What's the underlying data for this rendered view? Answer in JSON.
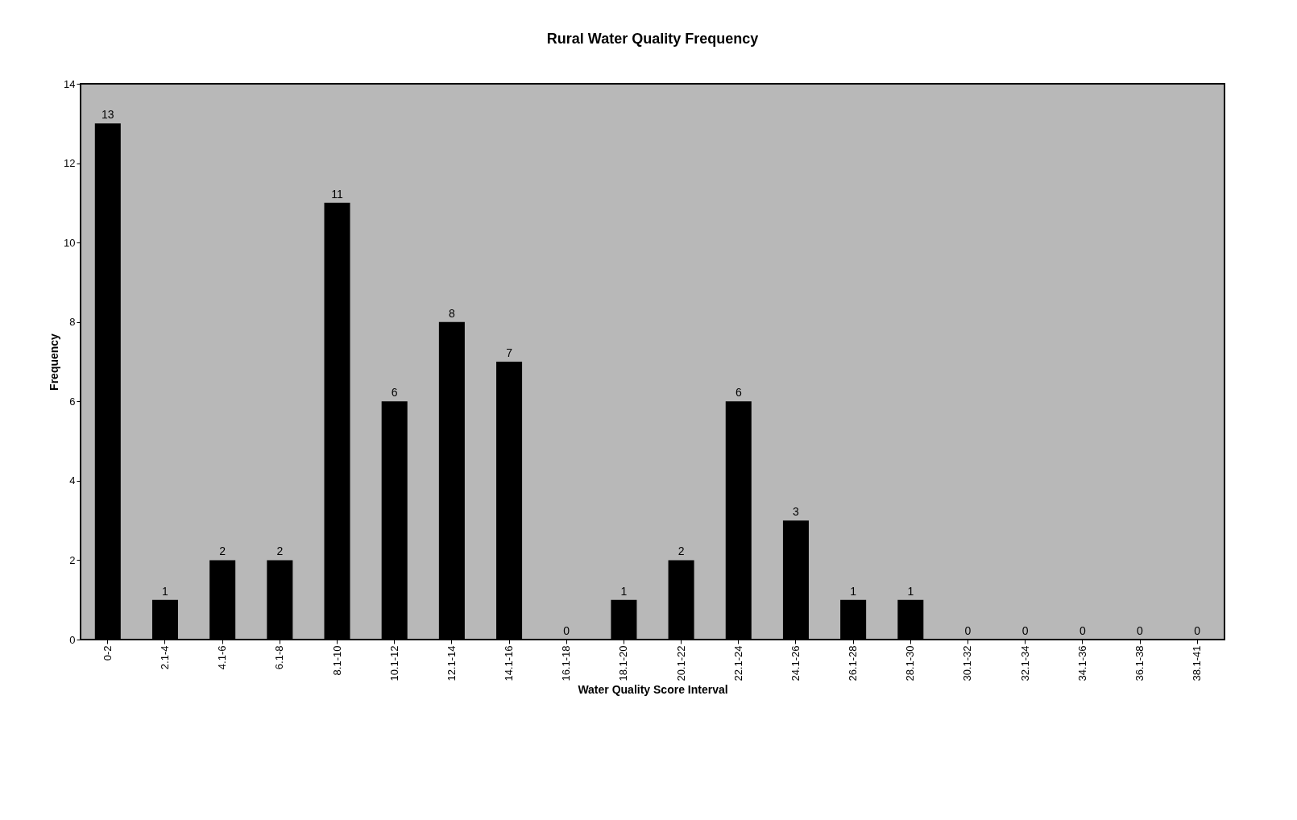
{
  "chart_data": {
    "type": "bar",
    "title": "Rural Water Quality Frequency",
    "xlabel": "Water Quality Score Interval",
    "ylabel": "Frequency",
    "categories": [
      "0-2",
      "2.1-4",
      "4.1-6",
      "6.1-8",
      "8.1-10",
      "10.1-12",
      "12.1-14",
      "14.1-16",
      "16.1-18",
      "18.1-20",
      "20.1-22",
      "22.1-24",
      "24.1-26",
      "26.1-28",
      "28.1-30",
      "30.1-32",
      "32.1-34",
      "34.1-36",
      "36.1-38",
      "38.1-41"
    ],
    "values": [
      13,
      1,
      2,
      2,
      11,
      6,
      8,
      7,
      0,
      1,
      2,
      6,
      3,
      1,
      1,
      0,
      0,
      0,
      0,
      0
    ],
    "color": "#000000",
    "ylim": [
      0,
      14
    ],
    "yticks": [
      0,
      2,
      4,
      6,
      8,
      10,
      12,
      14
    ],
    "grid": false,
    "data_labels": true
  }
}
